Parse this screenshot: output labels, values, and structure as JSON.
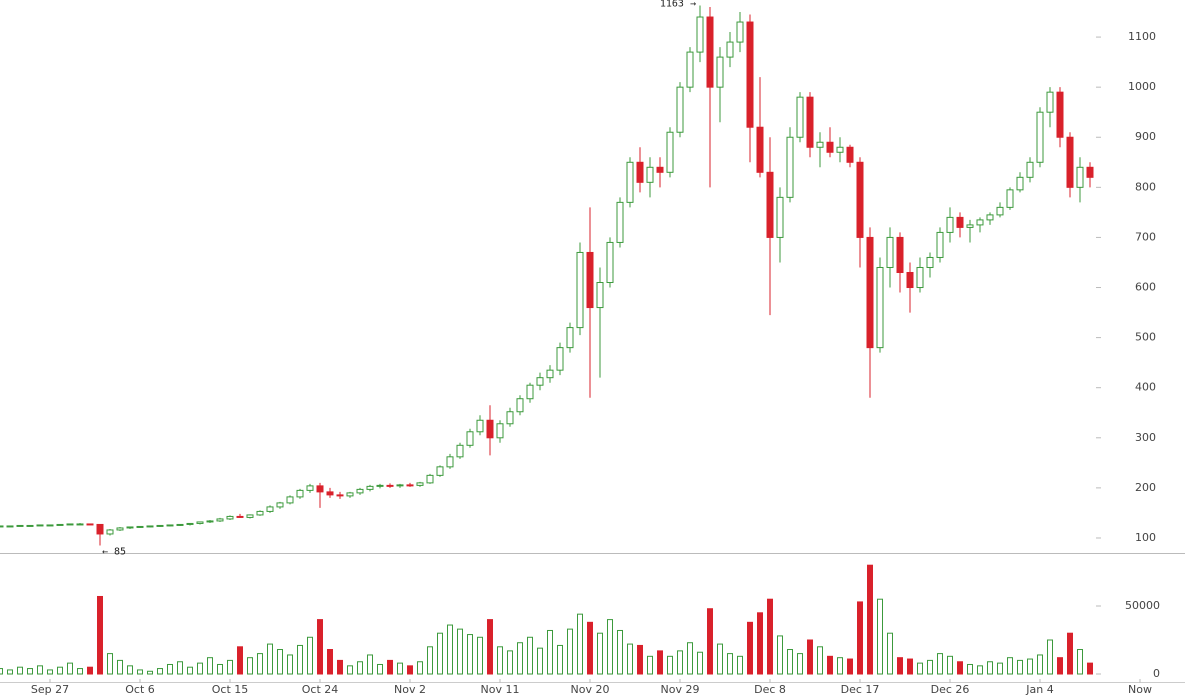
{
  "chart_data": [
    {
      "type": "candlestick",
      "categories": [
        null,
        null,
        null,
        null,
        null,
        "Sep 27",
        null,
        null,
        null,
        null,
        null,
        null,
        null,
        null,
        "Oct 6",
        null,
        null,
        null,
        null,
        null,
        null,
        null,
        null,
        "Oct 15",
        null,
        null,
        null,
        null,
        null,
        null,
        null,
        null,
        "Oct 24",
        null,
        null,
        null,
        null,
        null,
        null,
        null,
        null,
        "Nov 2",
        null,
        null,
        null,
        null,
        null,
        null,
        null,
        null,
        "Nov 11",
        null,
        null,
        null,
        null,
        null,
        null,
        null,
        null,
        "Nov 20",
        null,
        null,
        null,
        null,
        null,
        null,
        null,
        null,
        "Nov 29",
        null,
        null,
        null,
        null,
        null,
        null,
        null,
        null,
        "Dec 8",
        null,
        null,
        null,
        null,
        null,
        null,
        null,
        null,
        "Dec 17",
        null,
        null,
        null,
        null,
        null,
        null,
        null,
        null,
        "Dec 26",
        null,
        null,
        null,
        null,
        null,
        null,
        null,
        null,
        "Jan 4",
        null,
        null,
        null,
        null,
        null,
        null,
        null,
        null,
        null,
        "Now"
      ],
      "open": [
        123,
        124,
        124,
        125,
        125,
        126,
        126,
        127,
        128,
        128,
        127,
        108,
        116,
        120,
        122,
        123,
        124,
        125,
        126,
        127,
        129,
        132,
        134,
        138,
        143,
        141,
        146,
        153,
        162,
        170,
        182,
        195,
        204,
        192,
        186,
        184,
        190,
        197,
        203,
        205,
        204,
        206,
        205,
        210,
        225,
        242,
        262,
        285,
        312,
        335,
        300,
        328,
        352,
        378,
        405,
        420,
        435,
        480,
        520,
        670,
        560,
        610,
        690,
        770,
        850,
        810,
        840,
        830,
        910,
        1000,
        1070,
        1140,
        1000,
        1060,
        1090,
        1130,
        920,
        830,
        700,
        780,
        900,
        980,
        880,
        890,
        870,
        880,
        850,
        700,
        480,
        640,
        700,
        630,
        600,
        640,
        660,
        710,
        740,
        720,
        725,
        735,
        745,
        760,
        795,
        820,
        850,
        950,
        990,
        900,
        800,
        840,
        null,
        null,
        null,
        null,
        null
      ],
      "high": [
        125,
        125,
        125,
        126,
        126,
        127,
        128,
        129,
        130,
        129,
        128,
        118,
        122,
        123,
        124,
        125,
        126,
        127,
        128,
        130,
        133,
        136,
        140,
        145,
        148,
        147,
        155,
        165,
        172,
        185,
        198,
        208,
        210,
        200,
        192,
        192,
        200,
        206,
        208,
        209,
        208,
        210,
        212,
        228,
        245,
        268,
        290,
        318,
        345,
        365,
        335,
        360,
        385,
        410,
        430,
        445,
        490,
        530,
        690,
        760,
        640,
        700,
        780,
        860,
        880,
        860,
        860,
        920,
        1010,
        1080,
        1163,
        1160,
        1080,
        1110,
        1150,
        1145,
        1020,
        900,
        800,
        920,
        990,
        990,
        910,
        920,
        900,
        885,
        860,
        720,
        660,
        720,
        710,
        650,
        660,
        670,
        720,
        760,
        750,
        735,
        740,
        750,
        770,
        800,
        830,
        860,
        960,
        1000,
        1000,
        910,
        860,
        850,
        null,
        null,
        null,
        null,
        null
      ],
      "low": [
        122,
        123,
        123,
        124,
        124,
        125,
        125,
        126,
        127,
        126,
        85,
        105,
        114,
        118,
        120,
        121,
        122,
        123,
        124,
        125,
        127,
        130,
        132,
        136,
        140,
        139,
        144,
        150,
        158,
        167,
        178,
        190,
        160,
        180,
        178,
        180,
        186,
        193,
        199,
        200,
        200,
        202,
        202,
        208,
        222,
        238,
        258,
        280,
        305,
        265,
        290,
        322,
        345,
        370,
        395,
        410,
        425,
        470,
        505,
        380,
        420,
        600,
        680,
        760,
        790,
        780,
        800,
        820,
        900,
        990,
        1050,
        800,
        930,
        1040,
        1070,
        850,
        820,
        545,
        650,
        770,
        890,
        860,
        840,
        860,
        850,
        840,
        640,
        380,
        470,
        600,
        590,
        550,
        590,
        620,
        650,
        690,
        700,
        690,
        710,
        725,
        740,
        755,
        790,
        810,
        840,
        920,
        880,
        780,
        770,
        800,
        null,
        null,
        null,
        null,
        null
      ],
      "close": [
        124,
        124,
        125,
        125,
        126,
        126,
        127,
        128,
        128,
        127,
        108,
        116,
        120,
        122,
        123,
        124,
        125,
        126,
        127,
        129,
        132,
        134,
        138,
        143,
        141,
        146,
        153,
        162,
        170,
        182,
        195,
        204,
        192,
        186,
        184,
        190,
        197,
        203,
        205,
        204,
        206,
        205,
        210,
        225,
        242,
        262,
        285,
        312,
        335,
        300,
        328,
        352,
        378,
        405,
        420,
        435,
        480,
        520,
        670,
        560,
        610,
        690,
        770,
        850,
        810,
        840,
        830,
        910,
        1000,
        1070,
        1140,
        1000,
        1060,
        1090,
        1130,
        920,
        830,
        700,
        780,
        900,
        980,
        880,
        890,
        870,
        880,
        850,
        700,
        480,
        640,
        700,
        630,
        600,
        640,
        660,
        710,
        740,
        720,
        725,
        735,
        745,
        760,
        795,
        820,
        850,
        950,
        990,
        900,
        800,
        840,
        820,
        null,
        null,
        null,
        null,
        null
      ],
      "up_color": "#3c9a3c",
      "down_color": "#d9212b",
      "ylim": [
        70,
        1174
      ],
      "yticks": [
        100,
        200,
        300,
        400,
        500,
        600,
        700,
        800,
        900,
        1000,
        1100
      ],
      "annotations": [
        "1163 →",
        "← 85"
      ]
    },
    {
      "type": "bar",
      "values": [
        4000,
        3000,
        5000,
        4000,
        6000,
        3000,
        5000,
        8000,
        4000,
        5000,
        57000,
        15000,
        10000,
        6000,
        3000,
        2000,
        4000,
        7000,
        9000,
        5000,
        8000,
        12000,
        7000,
        10000,
        20000,
        12000,
        15000,
        22000,
        18000,
        14000,
        21000,
        27000,
        40000,
        18000,
        10000,
        6000,
        9000,
        14000,
        7000,
        10000,
        8000,
        6000,
        9000,
        20000,
        30000,
        36000,
        33000,
        29000,
        27000,
        40000,
        20000,
        17000,
        23000,
        27000,
        19000,
        32000,
        21000,
        33000,
        44000,
        38000,
        30000,
        40000,
        32000,
        22000,
        21000,
        13000,
        17000,
        13000,
        17000,
        23000,
        16000,
        48000,
        22000,
        15000,
        13000,
        38000,
        45000,
        55000,
        28000,
        18000,
        15000,
        25000,
        20000,
        13000,
        12000,
        11000,
        53000,
        80000,
        55000,
        30000,
        12000,
        11000,
        8000,
        10000,
        15000,
        13000,
        9000,
        7000,
        6000,
        9000,
        8000,
        12000,
        10000,
        11000,
        14000,
        25000,
        12000,
        30000,
        18000,
        8000,
        null,
        null,
        null,
        null,
        null
      ],
      "ylim": [
        0,
        85000
      ],
      "yticks": [
        0,
        50000
      ]
    }
  ]
}
